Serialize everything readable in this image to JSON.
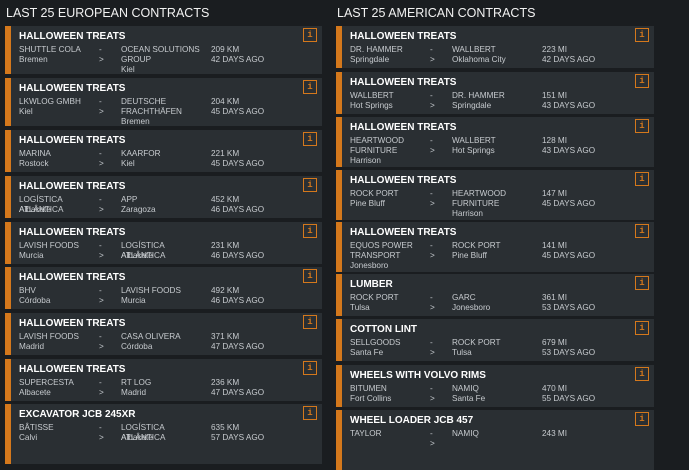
{
  "colors": {
    "accent": "#d4781c",
    "card": "#2a2f33",
    "background": "#1a1d20"
  },
  "info_icon_label": "i",
  "european": {
    "title": "LAST 25 EUROPEAN CONTRACTS",
    "contracts": [
      {
        "cargo": "HALLOWEEN TREATS",
        "from_company": "SHUTTLE COLA",
        "from_city": "Bremen",
        "to_company": "OCEAN SOLUTIONS GROUP",
        "to_city": "Kiel",
        "distance": "209 KM",
        "time": "42 DAYS AGO",
        "sep_top": "-",
        "sep_bottom": ">"
      },
      {
        "cargo": "HALLOWEEN TREATS",
        "from_company": "LKWLOG GMBH",
        "from_city": "Kiel",
        "to_company": "DEUTSCHE FRACHTHÄFEN",
        "to_city": "Bremen",
        "distance": "204 KM",
        "time": "45 DAYS AGO",
        "sep_top": "-",
        "sep_bottom": ">"
      },
      {
        "cargo": "HALLOWEEN TREATS",
        "from_company": "MARINA",
        "from_city": "Rostock",
        "to_company": "KAARFOR",
        "to_city": "Kiel",
        "distance": "221 KM",
        "time": "45 DAYS AGO",
        "sep_top": "-",
        "sep_bottom": ">"
      },
      {
        "cargo": "HALLOWEEN TREATS",
        "from_company": "LOGÍSTICA ATLÂNTICA",
        "from_city": "Albacete",
        "to_company": "APP",
        "to_city": "Zaragoza",
        "distance": "452 KM",
        "time": "46 DAYS AGO",
        "sep_top": "-",
        "sep_bottom": ">"
      },
      {
        "cargo": "HALLOWEEN TREATS",
        "from_company": "LAVISH FOODS",
        "from_city": "Murcia",
        "to_company": "LOGÍSTICA ATLÂNTICA",
        "to_city": "Albacete",
        "distance": "231 KM",
        "time": "46 DAYS AGO",
        "sep_top": "-",
        "sep_bottom": ">"
      },
      {
        "cargo": "HALLOWEEN TREATS",
        "from_company": "BHV",
        "from_city": "Córdoba",
        "to_company": "LAVISH FOODS",
        "to_city": "Murcia",
        "distance": "492 KM",
        "time": "46 DAYS AGO",
        "sep_top": "-",
        "sep_bottom": ">"
      },
      {
        "cargo": "HALLOWEEN TREATS",
        "from_company": "LAVISH FOODS",
        "from_city": "Madrid",
        "to_company": "CASA OLIVERA",
        "to_city": "Córdoba",
        "distance": "371 KM",
        "time": "47 DAYS AGO",
        "sep_top": "-",
        "sep_bottom": ">"
      },
      {
        "cargo": "HALLOWEEN TREATS",
        "from_company": "SUPERCESTA",
        "from_city": "Albacete",
        "to_company": "RT LOG",
        "to_city": "Madrid",
        "distance": "236 KM",
        "time": "47 DAYS AGO",
        "sep_top": "-",
        "sep_bottom": ">"
      },
      {
        "cargo": "EXCAVATOR JCB 245XR",
        "from_company": "BÂTISSE",
        "from_city": "Calvi",
        "to_company": "LOGÍSTICA ATLÂNTICA",
        "to_city": "Albacete",
        "distance": "635 KM",
        "time": "57 DAYS AGO",
        "sep_top": "-",
        "sep_bottom": ">"
      }
    ]
  },
  "american": {
    "title": "LAST 25 AMERICAN CONTRACTS",
    "contracts": [
      {
        "cargo": "HALLOWEEN TREATS",
        "from_company": "DR. HAMMER",
        "from_city": "Springdale",
        "to_company": "WALLBERT",
        "to_city": "Oklahoma City",
        "distance": "223 MI",
        "time": "42 DAYS AGO",
        "sep_top": "-",
        "sep_bottom": ">"
      },
      {
        "cargo": "HALLOWEEN TREATS",
        "from_company": "WALLBERT",
        "from_city": "Hot Springs",
        "to_company": "DR. HAMMER",
        "to_city": "Springdale",
        "distance": "151 MI",
        "time": "43 DAYS AGO",
        "sep_top": "-",
        "sep_bottom": ">"
      },
      {
        "cargo": "HALLOWEEN TREATS",
        "from_company": "HEARTWOOD FURNITURE",
        "from_city": "Harrison",
        "to_company": "WALLBERT",
        "to_city": "Hot Springs",
        "distance": "128 MI",
        "time": "43 DAYS AGO",
        "sep_top": "-",
        "sep_bottom": ">"
      },
      {
        "cargo": "HALLOWEEN TREATS",
        "from_company": "ROCK PORT",
        "from_city": "Pine Bluff",
        "to_company": "HEARTWOOD FURNITURE",
        "to_city": "Harrison",
        "distance": "147 MI",
        "time": "45 DAYS AGO",
        "sep_top": "-",
        "sep_bottom": ">"
      },
      {
        "cargo": "HALLOWEEN TREATS",
        "from_company": "EQUOS POWER TRANSPORT",
        "from_city": "Jonesboro",
        "to_company": "ROCK PORT",
        "to_city": "Pine Bluff",
        "distance": "141 MI",
        "time": "45 DAYS AGO",
        "sep_top": "-",
        "sep_bottom": ">"
      },
      {
        "cargo": "LUMBER",
        "from_company": "ROCK PORT",
        "from_city": "Tulsa",
        "to_company": "GARC",
        "to_city": "Jonesboro",
        "distance": "361 MI",
        "time": "53 DAYS AGO",
        "sep_top": "-",
        "sep_bottom": ">"
      },
      {
        "cargo": "COTTON LINT",
        "from_company": "SELLGOODS",
        "from_city": "Santa Fe",
        "to_company": "ROCK PORT",
        "to_city": "Tulsa",
        "distance": "679 MI",
        "time": "53 DAYS AGO",
        "sep_top": "-",
        "sep_bottom": ">"
      },
      {
        "cargo": "WHEELS WITH VOLVO RIMS",
        "from_company": "BITUMEN",
        "from_city": "Fort Collins",
        "to_company": "NAMIQ",
        "to_city": "Santa Fe",
        "distance": "470 MI",
        "time": "55 DAYS AGO",
        "sep_top": "-",
        "sep_bottom": ">"
      },
      {
        "cargo": "WHEEL LOADER JCB 457",
        "from_company": "TAYLOR",
        "from_city": "",
        "to_company": "NAMIQ",
        "to_city": "",
        "distance": "243 MI",
        "time": "",
        "sep_top": "-",
        "sep_bottom": ">"
      }
    ]
  }
}
